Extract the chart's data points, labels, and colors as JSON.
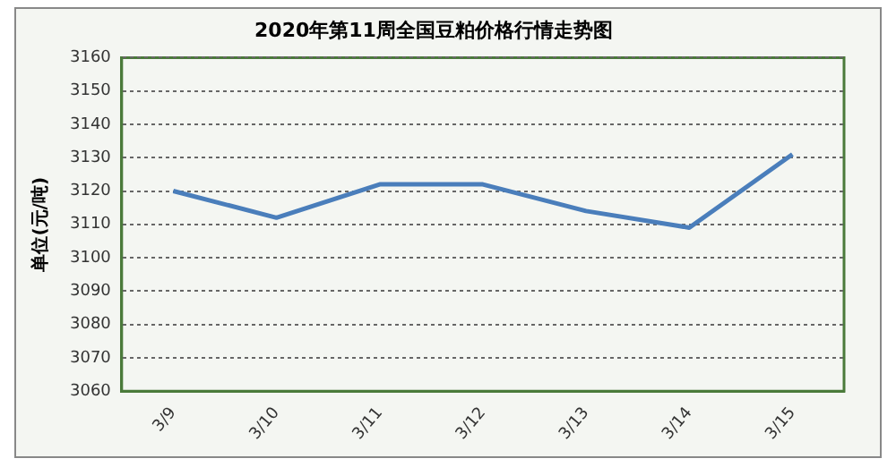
{
  "chart_data": {
    "type": "line",
    "title": "2020年第11周全国豆粕价格行情走势图",
    "ylabel": "单位(元/吨)",
    "categories": [
      "3/9",
      "3/10",
      "3/11",
      "3/12",
      "3/13",
      "3/14",
      "3/15"
    ],
    "series": [
      {
        "color": "#4a7ebb",
        "values": [
          3120,
          3112,
          3122,
          3122,
          3114,
          3109,
          3131
        ]
      }
    ],
    "ylim": [
      3060,
      3160
    ],
    "yticks": [
      3060,
      3070,
      3080,
      3090,
      3100,
      3110,
      3120,
      3130,
      3140,
      3150,
      3160
    ],
    "grid": "y",
    "legend": false,
    "marker": "none",
    "line_style": "solid"
  }
}
